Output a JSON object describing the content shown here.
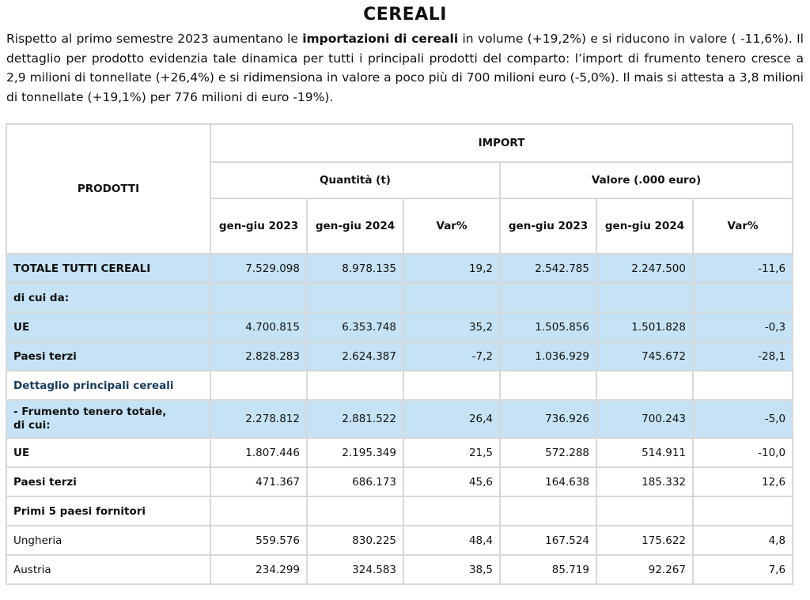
{
  "title": "CEREALI",
  "intro": {
    "p1": "Rispetto al primo semestre 2023 aumentano le ",
    "b1": "importazioni di cereali",
    "p2": " in volume (+19,2%) e si riducono in valore ( -11,6%). Il dettaglio per prodotto evidenzia tale dinamica per tutti i principali prodotti del comparto: l’import di frumento tenero cresce a 2,9 milioni di tonnellate (+26,4%) e si ridimensiona in valore a poco più di 700 milioni euro (-5,0%). Il mais si attesta a 3,8 milioni di tonnellate (+19,1%) per 776 milioni di euro -19%)."
  },
  "table": {
    "header_products": "PRODOTTI",
    "header_import": "IMPORT",
    "header_quantity": "Quantità (t)",
    "header_value": "Valore (.000 euro)",
    "periods": [
      "gen-giu 2023",
      "gen-giu 2024",
      "Var%",
      "gen-giu 2023",
      "gen-giu 2024",
      "Var%"
    ],
    "rows": [
      {
        "label": "TOTALE TUTTI CEREALI",
        "q23": "7.529.098",
        "q24": "8.978.135",
        "qv": "19,2",
        "v23": "2.542.785",
        "v24": "2.247.500",
        "vv": "-11,6"
      },
      {
        "label": "di cui da:"
      },
      {
        "label": "UE",
        "q23": "4.700.815",
        "q24": "6.353.748",
        "qv": "35,2",
        "v23": "1.505.856",
        "v24": "1.501.828",
        "vv": "-0,3"
      },
      {
        "label": "Paesi terzi",
        "q23": "2.828.283",
        "q24": "2.624.387",
        "qv": "-7,2",
        "v23": "1.036.929",
        "v24": "745.672",
        "vv": "-28,1"
      },
      {
        "label": "Dettaglio principali cereali"
      },
      {
        "label_line1": " - Frumento tenero totale,",
        "label_line2": "di cui:",
        "q23": "2.278.812",
        "q24": "2.881.522",
        "qv": "26,4",
        "v23": "736.926",
        "v24": "700.243",
        "vv": "-5,0"
      },
      {
        "label": "UE",
        "q23": "1.807.446",
        "q24": "2.195.349",
        "qv": "21,5",
        "v23": "572.288",
        "v24": "514.911",
        "vv": "-10,0"
      },
      {
        "label": "Paesi terzi",
        "q23": "471.367",
        "q24": "686.173",
        "qv": "45,6",
        "v23": "164.638",
        "v24": "185.332",
        "vv": "12,6"
      },
      {
        "label": "Primi 5 paesi fornitori"
      },
      {
        "label": "Ungheria",
        "q23": "559.576",
        "q24": "830.225",
        "qv": "48,4",
        "v23": "167.524",
        "v24": "175.622",
        "vv": "4,8"
      },
      {
        "label": "Austria",
        "q23": "234.299",
        "q24": "324.583",
        "qv": "38,5",
        "v23": "85.719",
        "v24": "92.267",
        "vv": "7,6"
      }
    ]
  }
}
